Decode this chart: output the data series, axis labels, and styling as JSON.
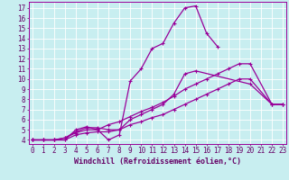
{
  "bg_color": "#c8eef0",
  "grid_color": "#ffffff",
  "line_color": "#990099",
  "marker_style": "+",
  "marker_size": 3,
  "linewidth": 0.9,
  "xlabel": "Windchill (Refroidissement éolien,°C)",
  "xlabel_fontsize": 6.0,
  "tick_fontsize": 5.5,
  "xticks": [
    0,
    1,
    2,
    3,
    4,
    5,
    6,
    7,
    8,
    9,
    10,
    11,
    12,
    13,
    14,
    15,
    16,
    17,
    18,
    19,
    20,
    21,
    22,
    23
  ],
  "yticks": [
    4,
    5,
    6,
    7,
    8,
    9,
    10,
    11,
    12,
    13,
    14,
    15,
    16,
    17
  ],
  "xlim": [
    -0.3,
    23.3
  ],
  "ylim": [
    3.6,
    17.6
  ],
  "series1_x": [
    0,
    1,
    2,
    3,
    4,
    5,
    6,
    7,
    8,
    9,
    10,
    11,
    12,
    13,
    14,
    15,
    16,
    17
  ],
  "series1_y": [
    4.0,
    4.0,
    4.0,
    4.0,
    5.0,
    5.3,
    5.0,
    4.0,
    4.5,
    9.8,
    11.0,
    13.0,
    13.5,
    15.5,
    17.0,
    17.2,
    14.5,
    13.2
  ],
  "series2_x": [
    0,
    1,
    2,
    3,
    4,
    5,
    6,
    7,
    8,
    9,
    10,
    11,
    12,
    13,
    14,
    15,
    20,
    22,
    23
  ],
  "series2_y": [
    4.0,
    4.0,
    4.0,
    4.2,
    4.8,
    5.2,
    5.2,
    5.0,
    5.0,
    6.0,
    6.5,
    7.0,
    7.5,
    8.5,
    10.5,
    10.8,
    9.5,
    7.5,
    7.5
  ],
  "series3_x": [
    0,
    1,
    2,
    3,
    4,
    5,
    6,
    7,
    8,
    9,
    10,
    11,
    12,
    13,
    14,
    15,
    16,
    17,
    18,
    19,
    20,
    22,
    23
  ],
  "series3_y": [
    4.0,
    4.0,
    4.0,
    4.2,
    4.7,
    5.0,
    5.0,
    5.5,
    5.8,
    6.3,
    6.8,
    7.2,
    7.7,
    8.3,
    9.0,
    9.5,
    10.0,
    10.5,
    11.0,
    11.5,
    11.5,
    7.5,
    7.5
  ],
  "series4_x": [
    0,
    1,
    2,
    3,
    4,
    5,
    6,
    7,
    8,
    9,
    10,
    11,
    12,
    13,
    14,
    15,
    16,
    17,
    18,
    19,
    20,
    22,
    23
  ],
  "series4_y": [
    4.0,
    4.0,
    4.0,
    4.0,
    4.5,
    4.7,
    4.8,
    4.8,
    5.0,
    5.5,
    5.8,
    6.2,
    6.5,
    7.0,
    7.5,
    8.0,
    8.5,
    9.0,
    9.5,
    10.0,
    10.0,
    7.5,
    7.5
  ]
}
